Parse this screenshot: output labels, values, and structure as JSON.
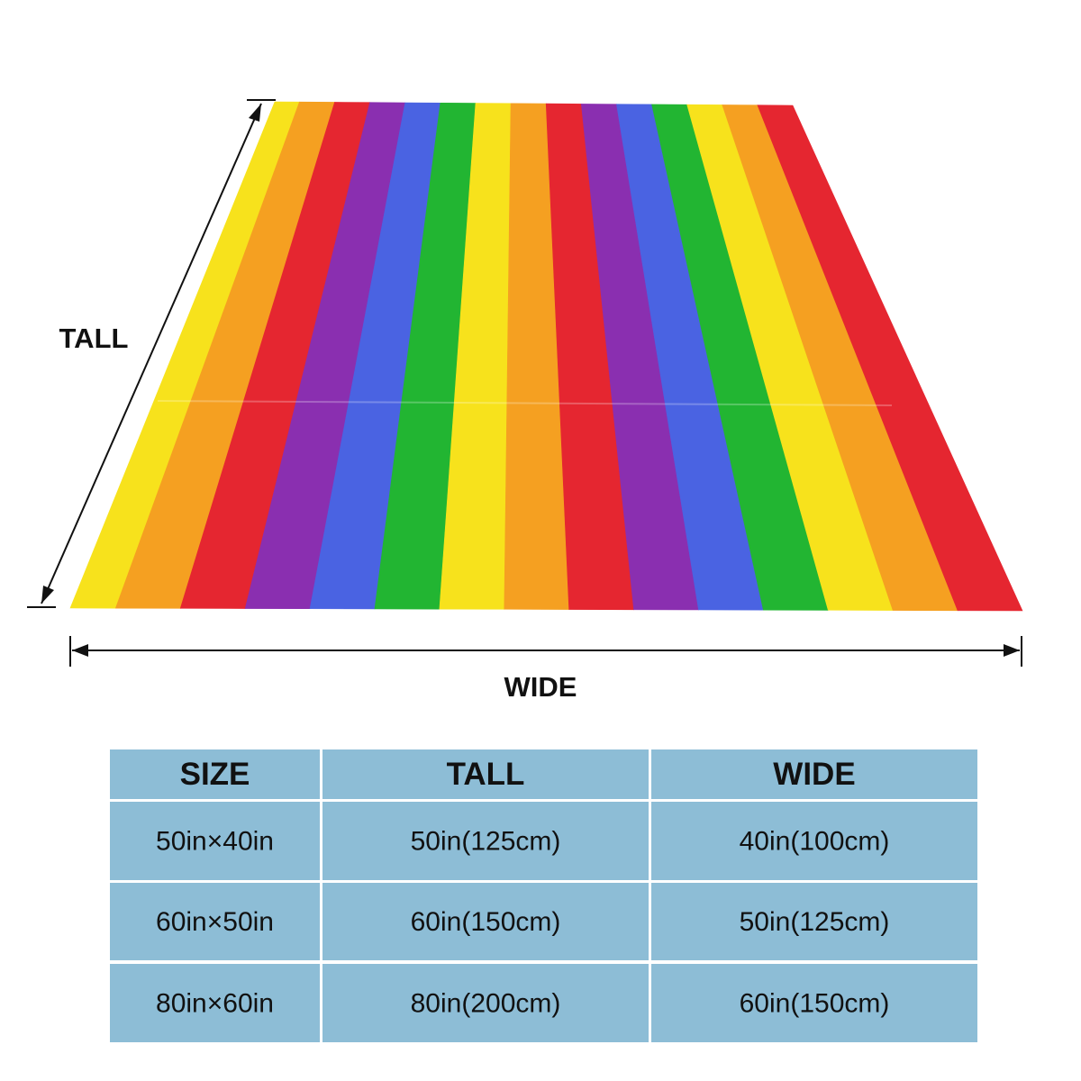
{
  "labels": {
    "tall": "TALL",
    "wide": "WIDE"
  },
  "table": {
    "header": [
      "SIZE",
      "TALL",
      "WIDE"
    ],
    "rows": [
      [
        "50in×40in",
        "50in(125cm)",
        "40in(100cm)"
      ],
      [
        "60in×50in",
        "60in(150cm)",
        "50in(125cm)"
      ],
      [
        "80in×60in",
        "80in(200cm)",
        "60in(150cm)"
      ]
    ]
  }
}
